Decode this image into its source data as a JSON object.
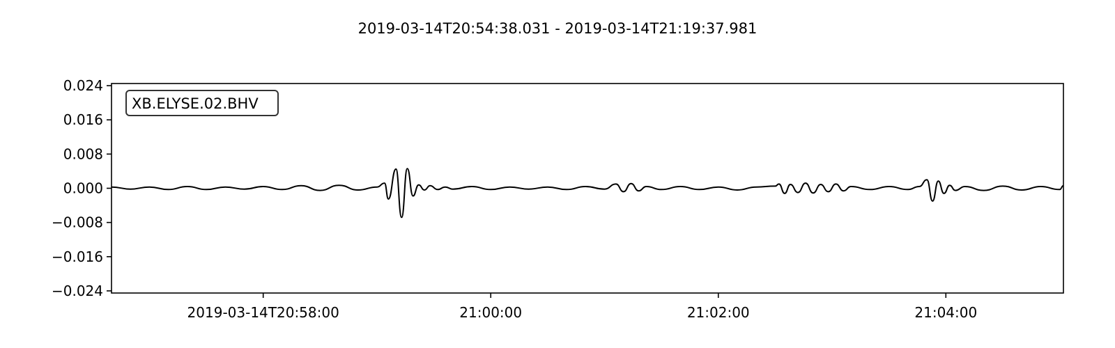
{
  "chart_data": {
    "type": "line",
    "title": "2019-03-14T20:54:38.031  -  2019-03-14T21:19:37.981",
    "trace_label": "XB.ELYSE.02.BHV",
    "xlabel": "",
    "ylabel": "",
    "x_axis": {
      "unit": "time (HH:MM:SS)",
      "xlim": [
        "20:56:40",
        "21:05:02"
      ],
      "ticks": [
        {
          "value": "20:58:00",
          "label": "2019-03-14T20:58:00"
        },
        {
          "value": "21:00:00",
          "label": "21:00:00"
        },
        {
          "value": "21:02:00",
          "label": "21:02:00"
        },
        {
          "value": "21:04:00",
          "label": "21:04:00"
        }
      ]
    },
    "y_axis": {
      "ylim": [
        -0.0245,
        0.0245
      ],
      "ticks": [
        {
          "value": 0.024,
          "label": "0.024"
        },
        {
          "value": 0.016,
          "label": "0.016"
        },
        {
          "value": 0.008,
          "label": "0.008"
        },
        {
          "value": 0.0,
          "label": "0.000"
        },
        {
          "value": -0.008,
          "label": "−0.008"
        },
        {
          "value": -0.016,
          "label": "−0.016"
        },
        {
          "value": -0.024,
          "label": "−0.024"
        }
      ]
    },
    "grid": false,
    "legend_position": "top-left",
    "line_color": "#000000",
    "series": [
      {
        "x": [
          "20:56:40",
          "20:56:50",
          "20:57:00",
          "20:57:10",
          "20:57:20",
          "20:57:30",
          "20:57:40",
          "20:57:50",
          "20:58:00",
          "20:58:10",
          "20:58:20",
          "20:58:30",
          "20:58:40",
          "20:58:50",
          "20:59:00",
          "20:59:04",
          "20:59:06",
          "20:59:10",
          "20:59:13",
          "20:59:16",
          "20:59:19",
          "20:59:22",
          "20:59:25",
          "20:59:28",
          "20:59:32",
          "20:59:36",
          "20:59:40",
          "20:59:50",
          "21:00:00",
          "21:00:10",
          "21:00:20",
          "21:00:30",
          "21:00:40",
          "21:00:50",
          "21:01:00",
          "21:01:06",
          "21:01:10",
          "21:01:14",
          "21:01:18",
          "21:01:22",
          "21:01:30",
          "21:01:40",
          "21:01:50",
          "21:02:00",
          "21:02:10",
          "21:02:20",
          "21:02:30",
          "21:02:32",
          "21:02:35",
          "21:02:38",
          "21:02:42",
          "21:02:46",
          "21:02:50",
          "21:02:54",
          "21:02:58",
          "21:03:02",
          "21:03:06",
          "21:03:10",
          "21:03:20",
          "21:03:30",
          "21:03:40",
          "21:03:46",
          "21:03:50",
          "21:03:53",
          "21:03:56",
          "21:03:59",
          "21:04:02",
          "21:04:05",
          "21:04:10",
          "21:04:20",
          "21:04:30",
          "21:04:40",
          "21:04:50",
          "21:05:00",
          "21:05:02"
        ],
        "y": [
          0.0003,
          -0.0002,
          0.0003,
          -0.0003,
          0.0004,
          -0.0003,
          0.0003,
          -0.0002,
          0.0004,
          -0.0003,
          0.0006,
          -0.0005,
          0.0007,
          -0.0004,
          0.0003,
          0.0012,
          -0.0025,
          0.0045,
          -0.0068,
          0.0046,
          -0.0018,
          0.0008,
          -0.0004,
          0.0006,
          -0.0003,
          0.0003,
          -0.0002,
          0.0004,
          -0.0003,
          0.0003,
          -0.0002,
          0.0003,
          -0.0003,
          0.0004,
          -0.0002,
          0.001,
          -0.0008,
          0.0011,
          -0.0006,
          0.0004,
          -0.0003,
          0.0004,
          -0.0003,
          0.0003,
          -0.0004,
          0.0003,
          0.0005,
          0.001,
          -0.0012,
          0.0009,
          -0.001,
          0.0012,
          -0.0011,
          0.0009,
          -0.0008,
          0.001,
          -0.0006,
          0.0004,
          -0.0003,
          0.0004,
          -0.0003,
          0.0004,
          0.002,
          -0.003,
          0.0017,
          -0.0012,
          0.0007,
          -0.0005,
          0.0004,
          -0.0005,
          0.0005,
          -0.0004,
          0.0004,
          -0.0003,
          0.0006
        ]
      }
    ]
  }
}
